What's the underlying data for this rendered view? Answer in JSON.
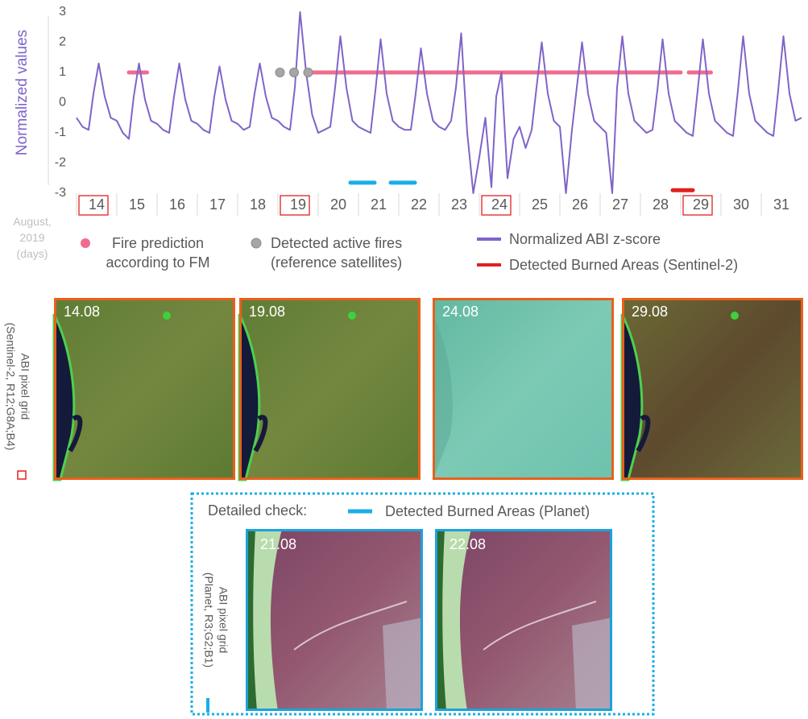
{
  "chart_data": {
    "type": "line",
    "y_label": "Normalized values",
    "x_label": "August, 2019 (days)",
    "xlim": [
      14,
      32
    ],
    "ylim": [
      -3,
      3
    ],
    "yticks": [
      -3,
      -2,
      -1,
      0,
      1,
      2,
      3
    ],
    "xticks": [
      14,
      15,
      16,
      17,
      18,
      19,
      20,
      21,
      22,
      23,
      24,
      25,
      26,
      27,
      28,
      29,
      30,
      31
    ],
    "highlighted_xticks": [
      14,
      19,
      24,
      29
    ],
    "series": [
      {
        "name": "Normalized ABI z-score",
        "type": "line",
        "color": "#8064c8",
        "x": [
          14,
          14.15,
          14.3,
          14.42,
          14.55,
          14.7,
          14.85,
          15,
          15.15,
          15.3,
          15.42,
          15.55,
          15.7,
          15.85,
          16,
          16.15,
          16.3,
          16.42,
          16.55,
          16.7,
          16.85,
          17,
          17.15,
          17.3,
          17.42,
          17.55,
          17.7,
          17.85,
          18,
          18.15,
          18.3,
          18.42,
          18.55,
          18.7,
          18.85,
          19,
          19.15,
          19.3,
          19.42,
          19.55,
          19.7,
          19.85,
          20,
          20.15,
          20.3,
          20.42,
          20.55,
          20.7,
          20.85,
          21,
          21.15,
          21.3,
          21.42,
          21.55,
          21.7,
          21.85,
          22,
          22.15,
          22.3,
          22.42,
          22.55,
          22.7,
          22.85,
          23,
          23.15,
          23.3,
          23.42,
          23.55,
          23.7,
          23.85,
          24,
          24.15,
          24.3,
          24.42,
          24.55,
          24.7,
          24.85,
          25,
          25.15,
          25.3,
          25.42,
          25.55,
          25.7,
          25.85,
          26,
          26.15,
          26.3,
          26.42,
          26.55,
          26.7,
          26.85,
          27,
          27.15,
          27.3,
          27.42,
          27.55,
          27.7,
          27.85,
          28,
          28.15,
          28.3,
          28.42,
          28.55,
          28.7,
          28.85,
          29,
          29.15,
          29.3,
          29.42,
          29.55,
          29.7,
          29.85,
          30,
          30.15,
          30.3,
          30.42,
          30.55,
          30.7,
          30.85,
          31,
          31.15,
          31.3,
          31.42,
          31.55,
          31.7,
          31.85,
          32
        ],
        "values": [
          -0.5,
          -0.8,
          -0.9,
          0.3,
          1.3,
          0.2,
          -0.5,
          -0.6,
          -1.0,
          -1.2,
          0.2,
          1.3,
          0.1,
          -0.6,
          -0.7,
          -0.9,
          -1.0,
          0.2,
          1.3,
          0.1,
          -0.6,
          -0.7,
          -0.9,
          -1.0,
          0.2,
          1.2,
          0.1,
          -0.6,
          -0.7,
          -0.9,
          -0.8,
          0.3,
          1.3,
          0.2,
          -0.5,
          -0.6,
          -0.8,
          -0.9,
          0.5,
          3.0,
          1.0,
          -0.4,
          -1.0,
          -0.9,
          -0.8,
          0.5,
          2.2,
          0.5,
          -0.6,
          -0.8,
          -0.9,
          -1.0,
          0.4,
          2.1,
          0.3,
          -0.6,
          -0.8,
          -0.9,
          -0.9,
          0.3,
          1.8,
          0.3,
          -0.6,
          -0.8,
          -0.9,
          -0.6,
          0.5,
          2.3,
          -1.0,
          -3.0,
          -1.8,
          -0.5,
          -2.8,
          0.2,
          1.0,
          -2.5,
          -1.2,
          -0.8,
          -1.5,
          -0.9,
          0.5,
          2.0,
          0.3,
          -0.6,
          -0.8,
          -3.0,
          -0.9,
          0.5,
          2.0,
          0.3,
          -0.6,
          -0.8,
          -1.0,
          -3.0,
          0.5,
          2.2,
          0.3,
          -0.6,
          -0.8,
          -1.0,
          -0.9,
          0.4,
          2.1,
          0.3,
          -0.6,
          -0.8,
          -1.0,
          -1.1,
          0.4,
          2.1,
          0.3,
          -0.6,
          -0.8,
          -1.0,
          -1.1,
          0.4,
          2.2,
          0.3,
          -0.6,
          -0.8,
          -1.0,
          -1.1,
          0.4,
          2.2,
          0.3,
          -0.6,
          -0.5
        ]
      },
      {
        "name": "Fire prediction according to FM",
        "type": "ranges",
        "color": "#f06c8e",
        "x_ranges": [
          [
            15.3,
            15.75
          ],
          [
            19.75,
            29.0
          ],
          [
            29.2,
            29.75
          ]
        ],
        "values": [
          1,
          1,
          1
        ]
      },
      {
        "name": "Detected active fires (reference satellites)",
        "type": "scatter",
        "color": "#a6a6a6",
        "x": [
          19.05,
          19.4,
          19.75
        ],
        "values": [
          1,
          1,
          1
        ]
      },
      {
        "name": "Detected Burned Areas (Sentinel-2)",
        "type": "ranges",
        "color": "#e02020",
        "x_ranges": [
          [
            28.8,
            29.3
          ]
        ],
        "values": [
          -2.9
        ]
      },
      {
        "name": "Detected Burned Areas (Planet)",
        "type": "ranges",
        "color": "#19aee8",
        "x_ranges": [
          [
            20.8,
            21.4
          ],
          [
            21.8,
            22.4
          ]
        ],
        "values": [
          -2.65,
          -2.65
        ]
      }
    ]
  },
  "sentinel_panel": {
    "label": [
      "ABI pixel grid",
      "(Sentinel-2, R12;G8A;B4)"
    ],
    "images": [
      {
        "date": "14.08"
      },
      {
        "date": "19.08"
      },
      {
        "date": "24.08"
      },
      {
        "date": "29.08"
      }
    ]
  },
  "planet_panel": {
    "title": "Detailed check:",
    "label": [
      "ABI pixel grid",
      "(Planet, R3;G2;B1)"
    ],
    "images": [
      {
        "date": "21.08"
      },
      {
        "date": "22.08"
      }
    ]
  }
}
